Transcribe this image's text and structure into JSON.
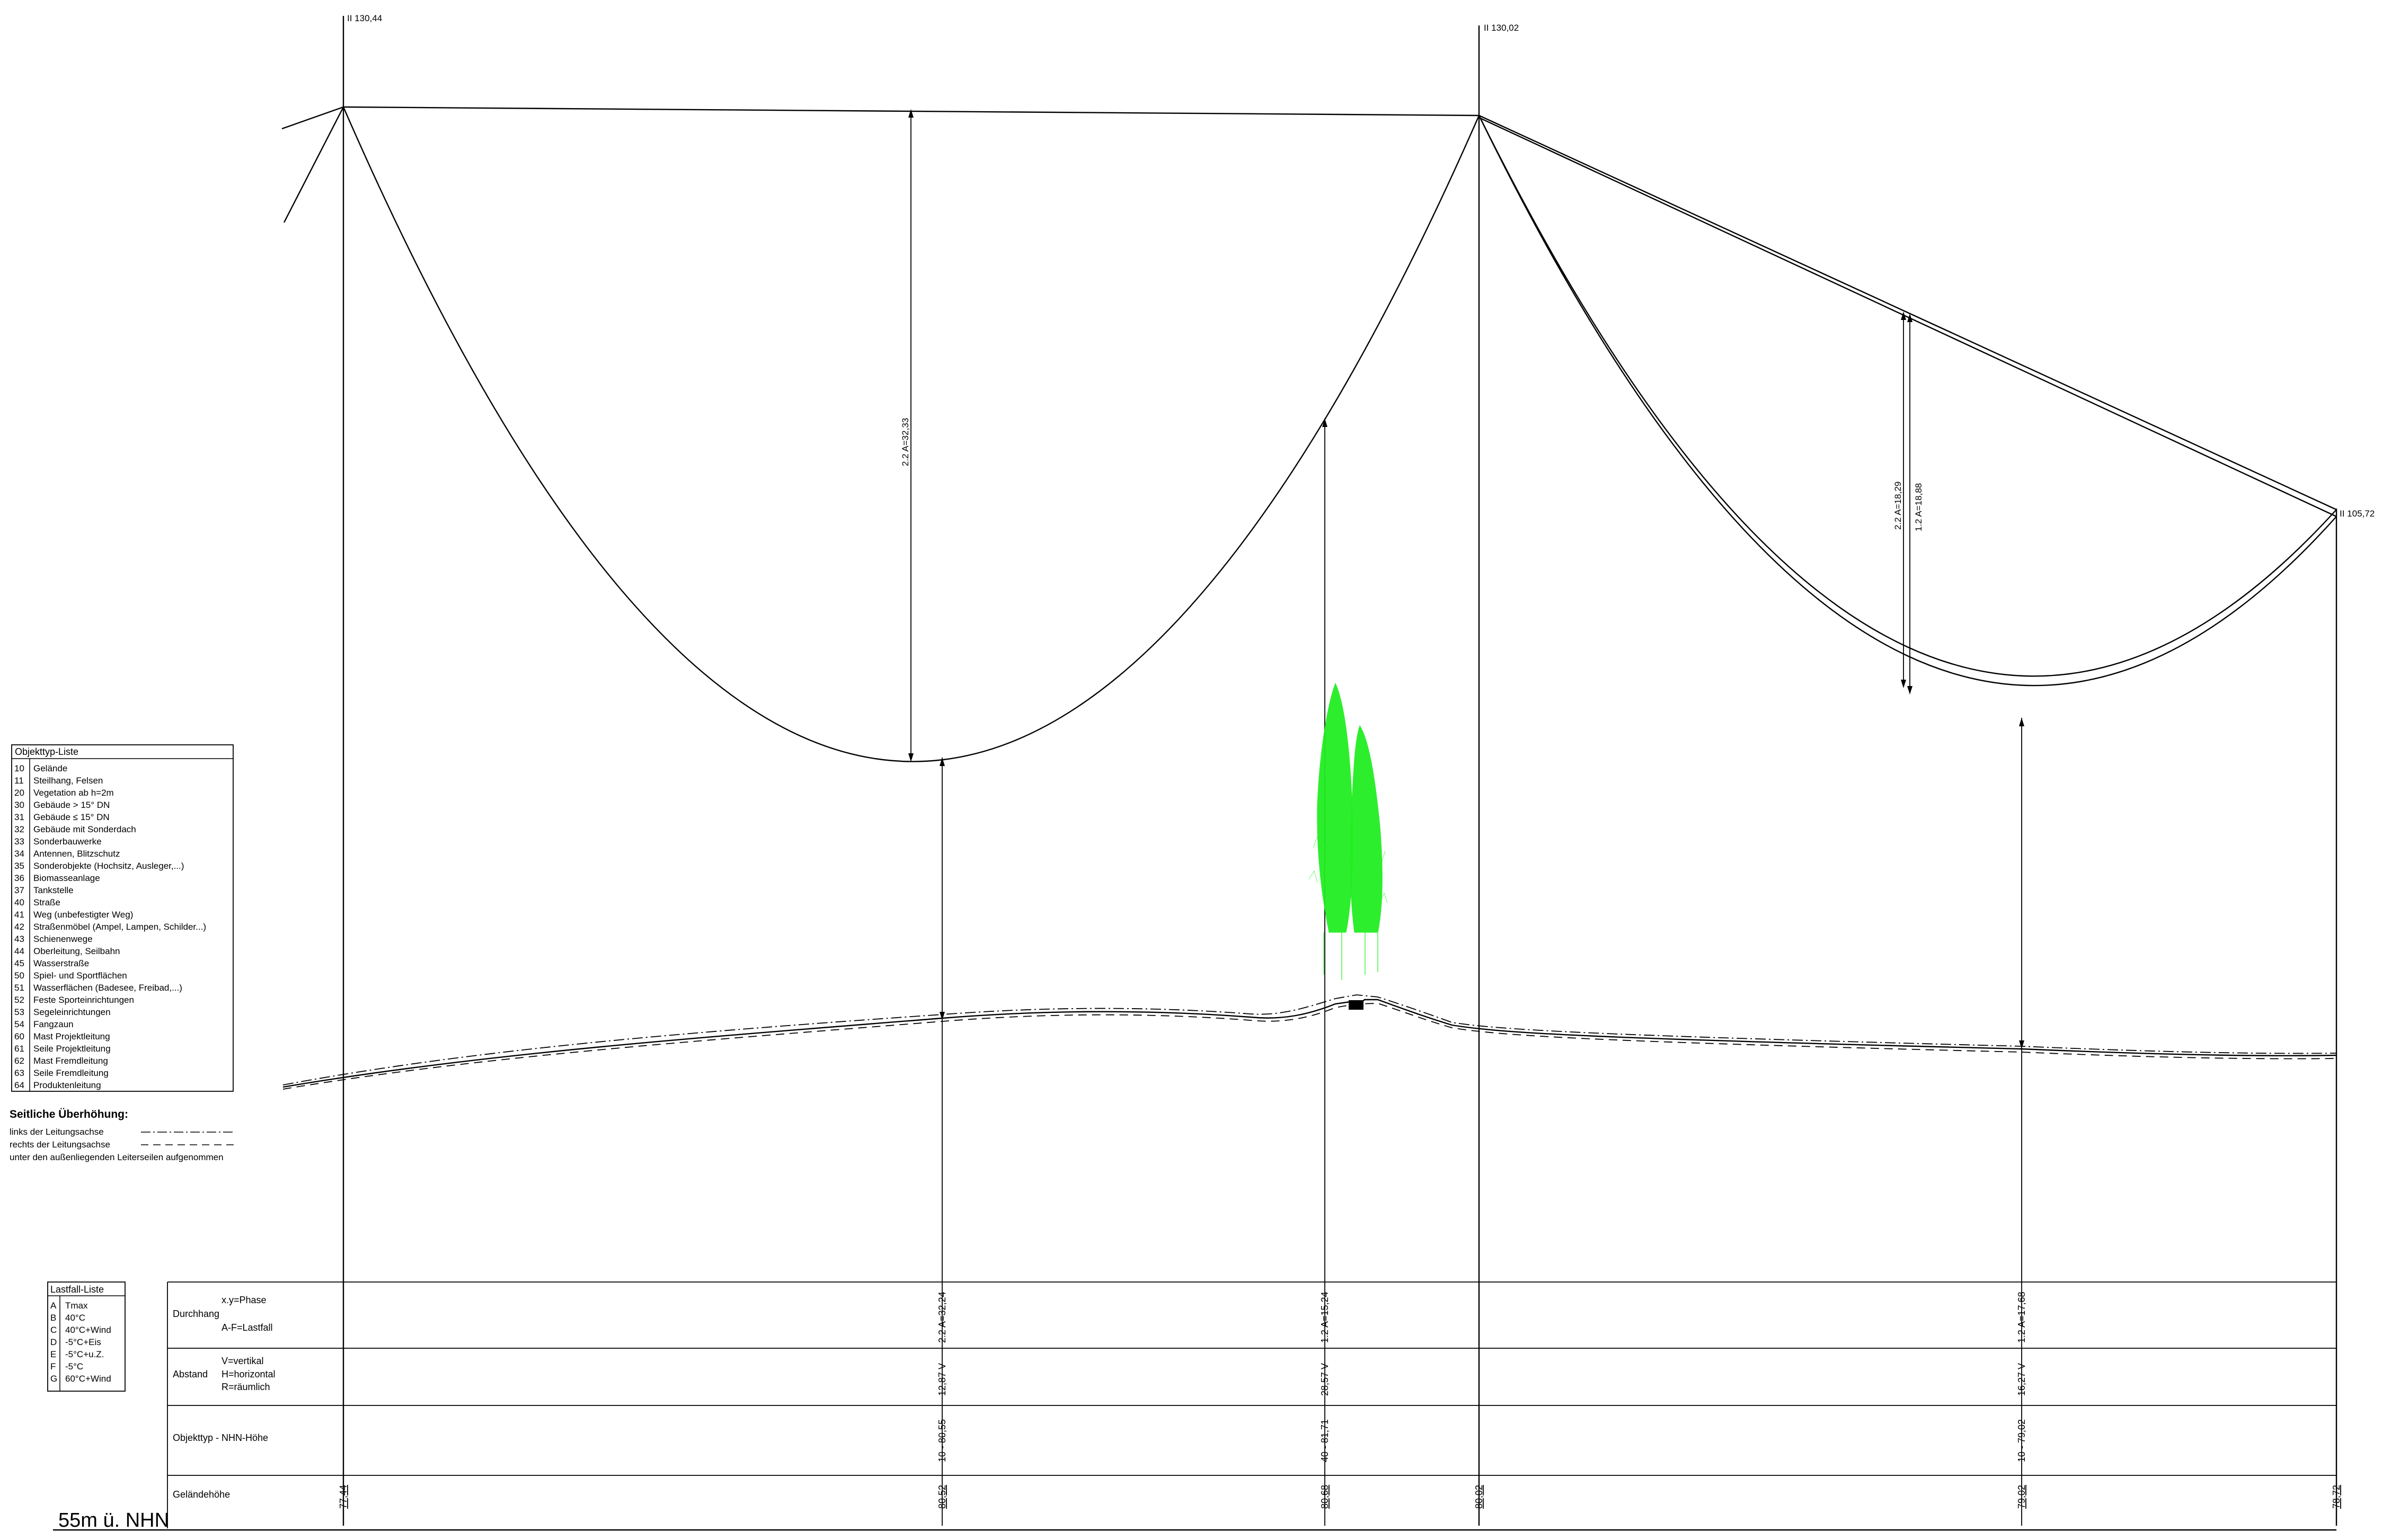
{
  "masts": [
    {
      "label": "II 130,44"
    },
    {
      "label": "II 130,02"
    },
    {
      "label": "II 105,72"
    }
  ],
  "span_measures": [
    {
      "label": "2.2 A=32,33"
    },
    {
      "label": "2.2 A=18,29"
    },
    {
      "label": "1.2 A=18,88"
    }
  ],
  "object_list": {
    "title": "Objekttyp-Liste",
    "items": [
      {
        "code": "10",
        "text": "Gelände"
      },
      {
        "code": "11",
        "text": "Steilhang, Felsen"
      },
      {
        "code": "20",
        "text": "Vegetation ab h=2m"
      },
      {
        "code": "30",
        "text": "Gebäude > 15° DN"
      },
      {
        "code": "31",
        "text": "Gebäude ≤ 15° DN"
      },
      {
        "code": "32",
        "text": "Gebäude mit Sonderdach"
      },
      {
        "code": "33",
        "text": "Sonderbauwerke"
      },
      {
        "code": "34",
        "text": "Antennen, Blitzschutz"
      },
      {
        "code": "35",
        "text": "Sonderobjekte (Hochsitz, Ausleger,...)"
      },
      {
        "code": "36",
        "text": "Biomasseanlage"
      },
      {
        "code": "37",
        "text": "Tankstelle"
      },
      {
        "code": "40",
        "text": "Straße"
      },
      {
        "code": "41",
        "text": "Weg (unbefestigter Weg)"
      },
      {
        "code": "42",
        "text": "Straßenmöbel (Ampel, Lampen, Schilder...)"
      },
      {
        "code": "43",
        "text": "Schienenwege"
      },
      {
        "code": "44",
        "text": "Oberleitung, Seilbahn"
      },
      {
        "code": "45",
        "text": "Wasserstraße"
      },
      {
        "code": "50",
        "text": "Spiel- und Sportflächen"
      },
      {
        "code": "51",
        "text": "Wasserflächen (Badesee, Freibad,...)"
      },
      {
        "code": "52",
        "text": "Feste Sporteinrichtungen"
      },
      {
        "code": "53",
        "text": "Segeleinrichtungen"
      },
      {
        "code": "54",
        "text": "Fangzaun"
      },
      {
        "code": "60",
        "text": "Mast Projektleitung"
      },
      {
        "code": "61",
        "text": "Seile Projektleitung"
      },
      {
        "code": "62",
        "text": "Mast Fremdleitung"
      },
      {
        "code": "63",
        "text": "Seile Fremdleitung"
      },
      {
        "code": "64",
        "text": "Produktenleitung"
      }
    ]
  },
  "lateral": {
    "title": "Seitliche Überhöhung:",
    "left": "links der Leitungsachse",
    "right": "rechts der Leitungsachse",
    "note": "unter den außenliegenden Leiterseilen aufgenommen"
  },
  "load_list": {
    "title": "Lastfall-Liste",
    "items": [
      {
        "code": "A",
        "text": "Tmax"
      },
      {
        "code": "B",
        "text": "40°C"
      },
      {
        "code": "C",
        "text": "40°C+Wind"
      },
      {
        "code": "D",
        "text": "-5°C+Eis"
      },
      {
        "code": "E",
        "text": "-5°C+u.Z."
      },
      {
        "code": "F",
        "text": "-5°C"
      },
      {
        "code": "G",
        "text": "60°C+Wind"
      }
    ]
  },
  "band": {
    "row1": {
      "label": "Durchhang",
      "sub1": "x.y=Phase",
      "sub2": "A-F=Lastfall"
    },
    "row2": {
      "label": "Abstand",
      "sub1": "V=vertikal",
      "sub2": "H=horizontal",
      "sub3": "R=räumlich"
    },
    "row3": {
      "label": "Objekttyp - NHN-Höhe"
    },
    "row4": {
      "label": "Geländehöhe"
    }
  },
  "datum": "55m ü. NHN",
  "band_values": [
    {
      "durchhang": "2.2 A=32,24",
      "abstand": "12,87 V",
      "objekt": "10 - 80,55"
    },
    {
      "durchhang": "1.2 A=15,24",
      "abstand": "28,57 V",
      "objekt": "40 - 81,71"
    },
    {
      "durchhang": "1.2 A=17,68",
      "abstand": "16,27 V",
      "objekt": "10 - 79,02"
    }
  ],
  "terrain_heights": [
    "77,44",
    "80,52",
    "80,68",
    "80,02",
    "79,02",
    "78,72"
  ],
  "colors": {
    "vegetation": "#22ee22",
    "line": "#000000"
  }
}
